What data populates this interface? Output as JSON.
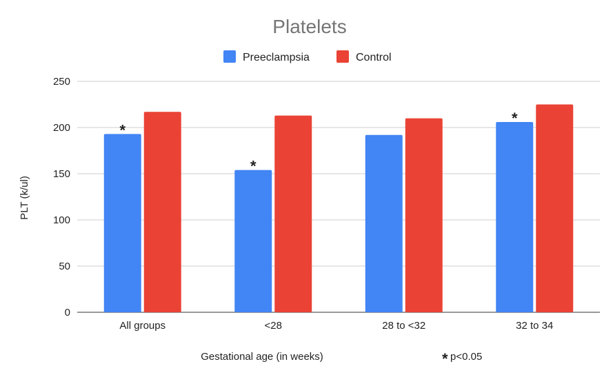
{
  "chart_data": {
    "type": "bar",
    "title": "Platelets",
    "xlabel": "Gestational age (in weeks)",
    "ylabel": "PLT (k/ul)",
    "ylim": [
      0,
      250
    ],
    "yticks": [
      0,
      50,
      100,
      150,
      200,
      250
    ],
    "grid": true,
    "legend_position": "top",
    "categories": [
      "All groups",
      "<28",
      "28 to <32",
      "32 to 34"
    ],
    "series": [
      {
        "name": "Preeclampsia",
        "color": "#4285F4",
        "values": [
          193,
          154,
          192,
          206
        ],
        "significant": [
          true,
          true,
          false,
          true
        ]
      },
      {
        "name": "Control",
        "color": "#EA4335",
        "values": [
          217,
          213,
          210,
          225
        ]
      }
    ],
    "annotation": {
      "marker": "*",
      "text": "p<0.05"
    }
  }
}
